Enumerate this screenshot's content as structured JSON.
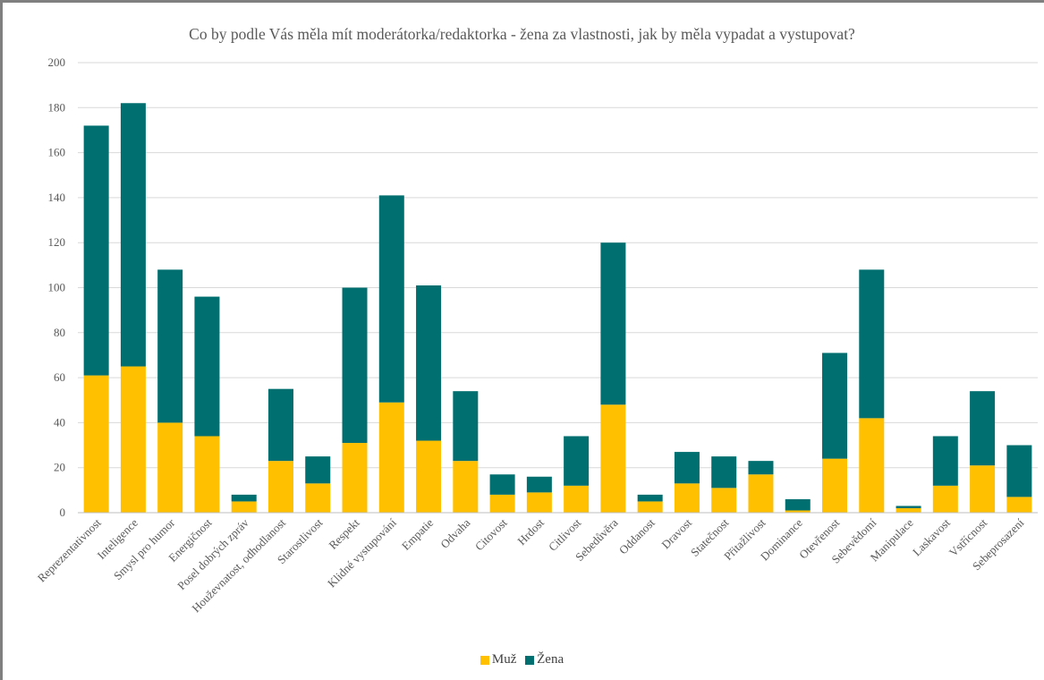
{
  "chart_data": {
    "type": "bar",
    "stacked": true,
    "title": "Co by podle Vás měla mít moderátorka/redaktorka - žena za vlastnosti, jak by měla vypadat a vystupovat?",
    "xlabel": "",
    "ylabel": "",
    "ylim": [
      0,
      200
    ],
    "yticks": [
      0,
      20,
      40,
      60,
      80,
      100,
      120,
      140,
      160,
      180,
      200
    ],
    "grid": true,
    "legend_position": "bottom",
    "categories": [
      "Reprezentativnost",
      "Inteligence",
      "Smysl pro humor",
      "Energičnost",
      "Posel dobrých zpráv",
      "Houževnatost, odhodlanost",
      "Starostlivost",
      "Respekt",
      "Klidné vystupování",
      "Empatie",
      "Odvaha",
      "Citovost",
      "Hrdost",
      "Citlivost",
      "Sebedůvěra",
      "Oddanost",
      "Dravost",
      "Statečnost",
      "Přitažlivost",
      "Dominance",
      "Otevřenost",
      "Sebevědomí",
      "Manipulace",
      "Laskavost",
      "Vstřícnost",
      "Sebeprosazení"
    ],
    "series": [
      {
        "name": "Muž",
        "color": "#ffc000",
        "values": [
          61,
          65,
          40,
          34,
          5,
          23,
          13,
          31,
          49,
          32,
          23,
          8,
          9,
          12,
          48,
          5,
          13,
          11,
          17,
          1,
          24,
          42,
          2,
          12,
          21,
          7
        ]
      },
      {
        "name": "Žena",
        "color": "#006f6f",
        "values": [
          111,
          117,
          68,
          62,
          3,
          32,
          12,
          69,
          92,
          69,
          31,
          9,
          7,
          22,
          72,
          3,
          14,
          14,
          6,
          5,
          47,
          66,
          1,
          22,
          33,
          23
        ]
      }
    ]
  }
}
